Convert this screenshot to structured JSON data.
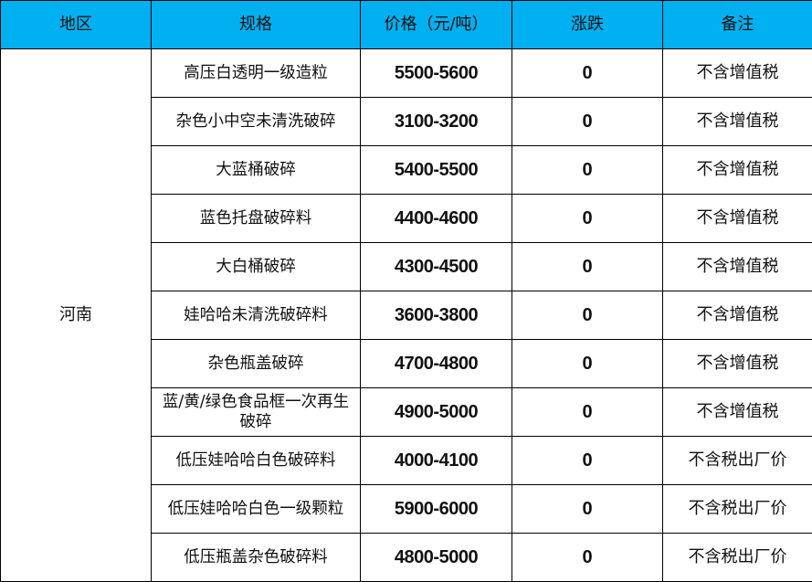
{
  "header": {
    "region": "地区",
    "spec": "规格",
    "price": "价格（元/吨）",
    "change": "涨跌",
    "note": "备注"
  },
  "colors": {
    "header_bg": "#00b0f0"
  },
  "region": "河南",
  "rows": [
    {
      "spec": "高压白透明一级造粒",
      "price": "5500-5600",
      "change": "0",
      "note": "不含增值税"
    },
    {
      "spec": "杂色小中空未清洗破碎",
      "price": "3100-3200",
      "change": "0",
      "note": "不含增值税"
    },
    {
      "spec": "大蓝桶破碎",
      "price": "5400-5500",
      "change": "0",
      "note": "不含增值税"
    },
    {
      "spec": "蓝色托盘破碎料",
      "price": "4400-4600",
      "change": "0",
      "note": "不含增值税"
    },
    {
      "spec": "大白桶破碎",
      "price": "4300-4500",
      "change": "0",
      "note": "不含增值税"
    },
    {
      "spec": "娃哈哈未清洗破碎料",
      "price": "3600-3800",
      "change": "0",
      "note": "不含增值税"
    },
    {
      "spec": "杂色瓶盖破碎",
      "price": "4700-4800",
      "change": "0",
      "note": "不含增值税"
    },
    {
      "spec": "蓝/黄/绿色食品框一次再生破碎",
      "price": "4900-5000",
      "change": "0",
      "note": "不含增值税"
    },
    {
      "spec": "低压娃哈哈白色破碎料",
      "price": "4000-4100",
      "change": "0",
      "note": "不含税出厂价"
    },
    {
      "spec": "低压娃哈哈白色一级颗粒",
      "price": "5900-6000",
      "change": "0",
      "note": "不含税出厂价"
    },
    {
      "spec": "低压瓶盖杂色破碎料",
      "price": "4800-5000",
      "change": "0",
      "note": "不含税出厂价"
    }
  ]
}
